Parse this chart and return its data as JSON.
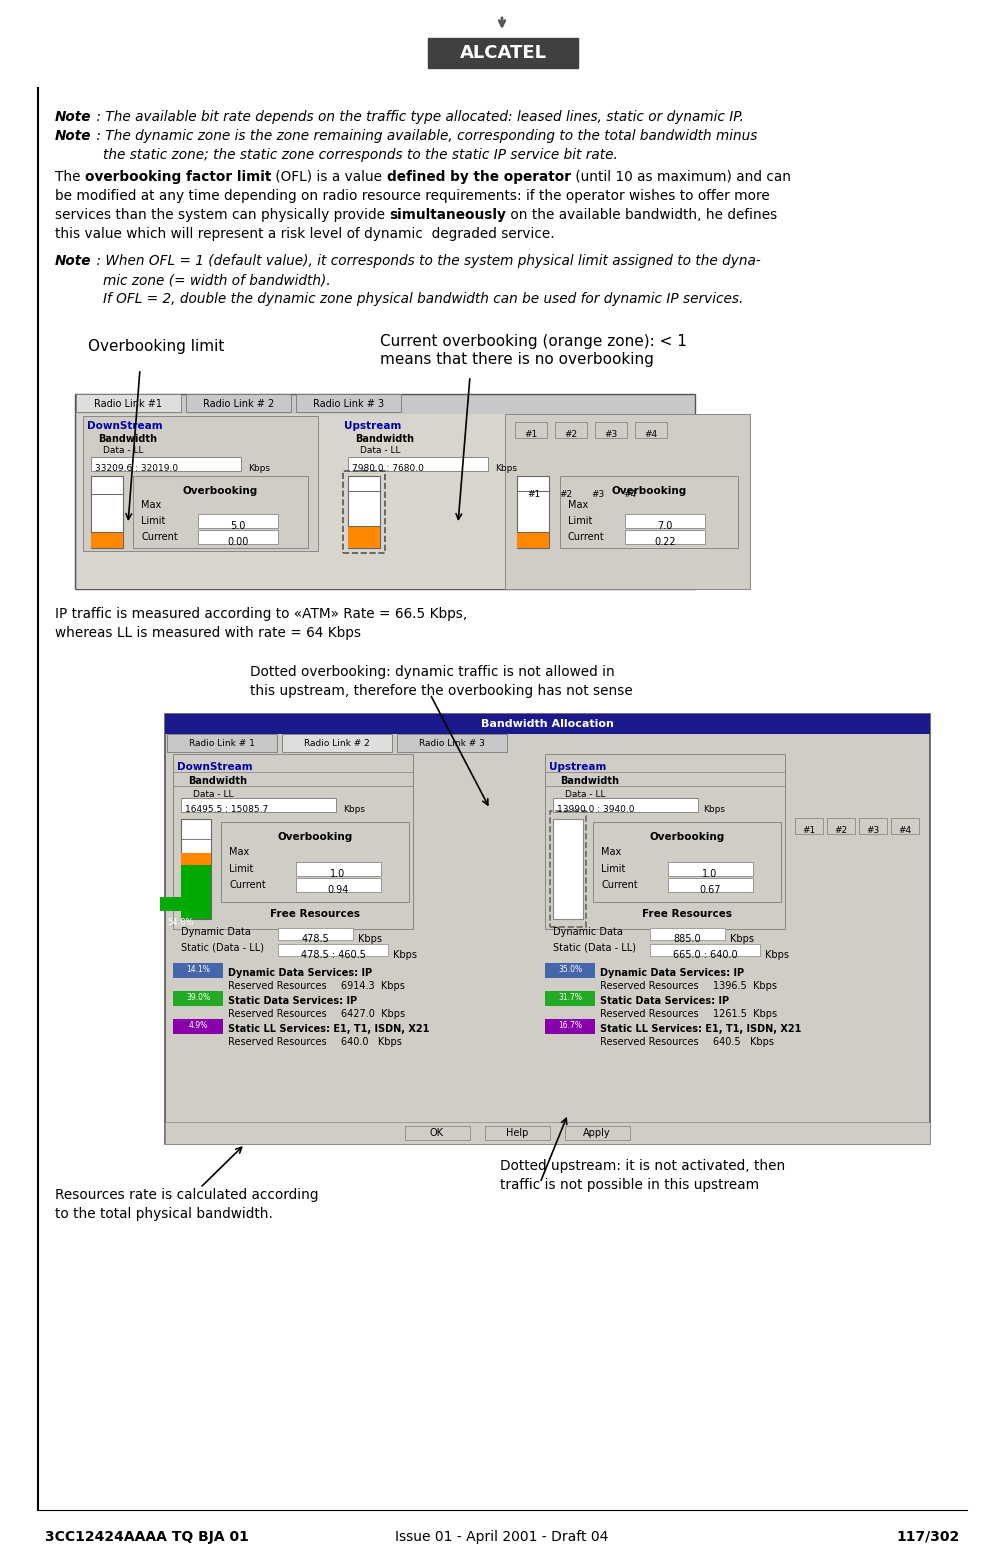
{
  "page_width": 9.85,
  "page_height": 15.28,
  "bg_color": "#ffffff",
  "footer_left": "3CC12424AAAA TQ BJA 01",
  "footer_mid": "Issue 01 - April 2001 - Draft 04",
  "footer_right": "117/302",
  "logo_text": "ALCATEL",
  "label_overbooking": "Overbooking limit",
  "label_current_line1": "Current overbooking (orange zone): < 1",
  "label_current_line2": "means that there is no overbooking",
  "label_ip_line1": "IP traffic is measured according to «ATM» Rate = 66.5 Kbps,",
  "label_ip_line2": "whereas LL is measured with rate = 64 Kbps",
  "label_dotted_line1": "Dotted overbooking: dynamic traffic is not allowed in",
  "label_dotted_line2": "this upstream, therefore the overbooking has not sense",
  "label_dotted2_line1": "Dotted upstream: it is not activated, then",
  "label_dotted2_line2": "traffic is not possible in this upstream",
  "label_resources_line1": "Resources rate is calculated according",
  "label_resources_line2": "to the total physical bandwidth."
}
